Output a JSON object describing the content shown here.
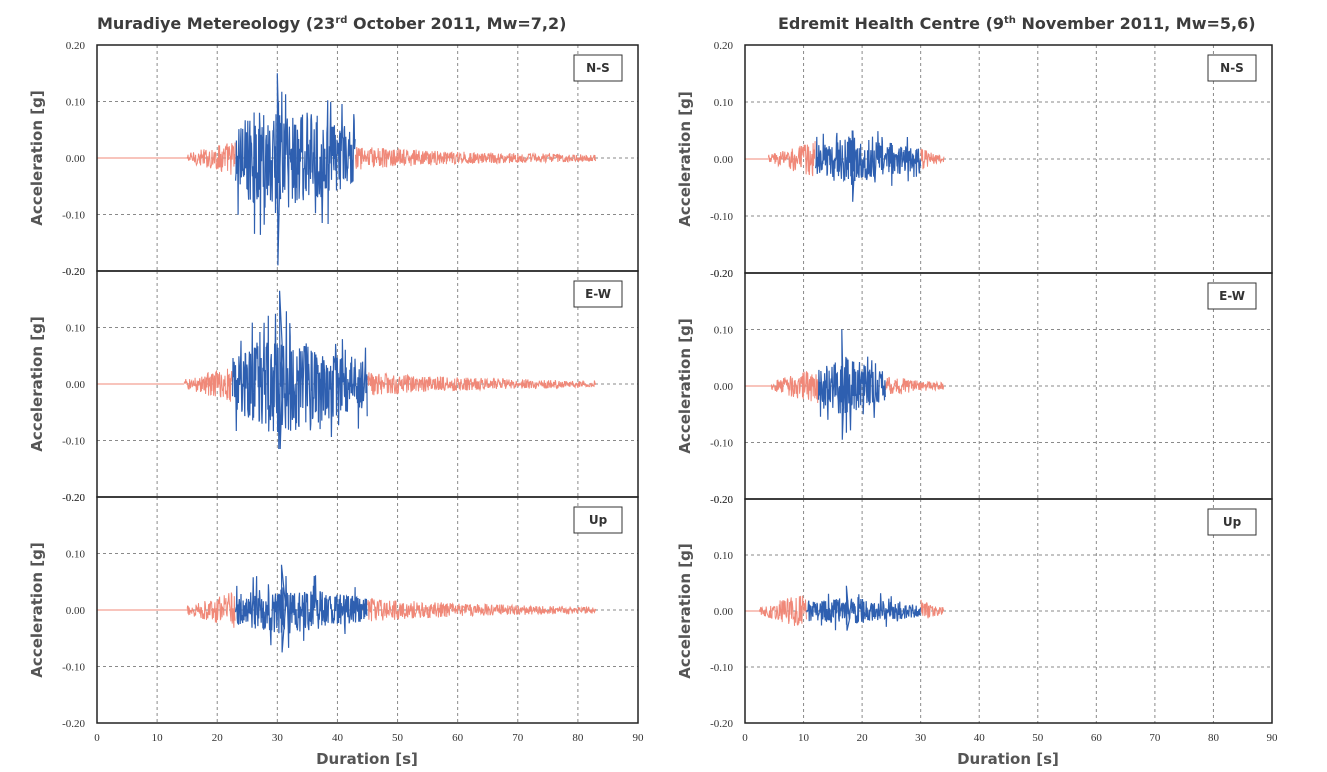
{
  "chart_data": [
    {
      "type": "line",
      "title": "Muradiye Metereology (23rd October 2011, Mw=7,2)",
      "title_parts": {
        "prefix": "Muradiye Metereology (23",
        "sup": "rd",
        "suffix": " October 2011, Mw=7,2)"
      },
      "xlabel": "Duration [s]",
      "ylabel": "Acceleration [g]",
      "xlim": [
        0,
        90
      ],
      "ylim": [
        -0.2,
        0.2
      ],
      "x_ticks": [
        "0",
        "10",
        "20",
        "30",
        "40",
        "50",
        "60",
        "70",
        "80",
        "90"
      ],
      "y_ticks": [
        "0.20",
        "0.10",
        "0.00",
        "-0.10",
        "-0.20"
      ],
      "grid": true,
      "panels": [
        {
          "component": "N-S",
          "record_end": 83,
          "strong_start": 23,
          "strong_end": 43,
          "peak_positive": 0.15,
          "peak_negative": -0.19,
          "colors": {
            "strong_motion": "#2e5fb0",
            "weak_motion": "#f08878"
          }
        },
        {
          "component": "E-W",
          "record_end": 83,
          "strong_start": 22.5,
          "strong_end": 45,
          "peak_positive": 0.165,
          "peak_negative": -0.115,
          "colors": {
            "strong_motion": "#2e5fb0",
            "weak_motion": "#f08878"
          }
        },
        {
          "component": "Up",
          "record_end": 83,
          "strong_start": 23,
          "strong_end": 45,
          "peak_positive": 0.08,
          "peak_negative": -0.075,
          "colors": {
            "strong_motion": "#2e5fb0",
            "weak_motion": "#f08878"
          }
        }
      ]
    },
    {
      "type": "line",
      "title": "Edremit Health Centre (9th November 2011, Mw=5,6)",
      "title_parts": {
        "prefix": "Edremit Health Centre (9",
        "sup": "th",
        "suffix": " November 2011, Mw=5,6)"
      },
      "xlabel": "Duration [s]",
      "ylabel": "Acceleration [g]",
      "xlim": [
        0,
        90
      ],
      "ylim": [
        -0.2,
        0.2
      ],
      "x_ticks": [
        "0",
        "10",
        "20",
        "30",
        "40",
        "50",
        "60",
        "70",
        "80",
        "90"
      ],
      "y_ticks": [
        "0.20",
        "0.10",
        "0.00",
        "-0.10",
        "-0.20"
      ],
      "grid": true,
      "panels": [
        {
          "component": "N-S",
          "record_end": 34,
          "strong_start": 12,
          "strong_end": 30,
          "peak_positive": 0.05,
          "peak_negative": -0.075,
          "colors": {
            "strong_motion": "#2e5fb0",
            "weak_motion": "#f08878"
          }
        },
        {
          "component": "E-W",
          "record_end": 34,
          "strong_start": 12.5,
          "strong_end": 24,
          "peak_positive": 0.1,
          "peak_negative": -0.095,
          "colors": {
            "strong_motion": "#2e5fb0",
            "weak_motion": "#f08878"
          }
        },
        {
          "component": "Up",
          "record_end": 34,
          "strong_start": 10.5,
          "strong_end": 30,
          "peak_positive": 0.045,
          "peak_negative": -0.035,
          "colors": {
            "strong_motion": "#2e5fb0",
            "weak_motion": "#f08878"
          }
        }
      ]
    }
  ]
}
